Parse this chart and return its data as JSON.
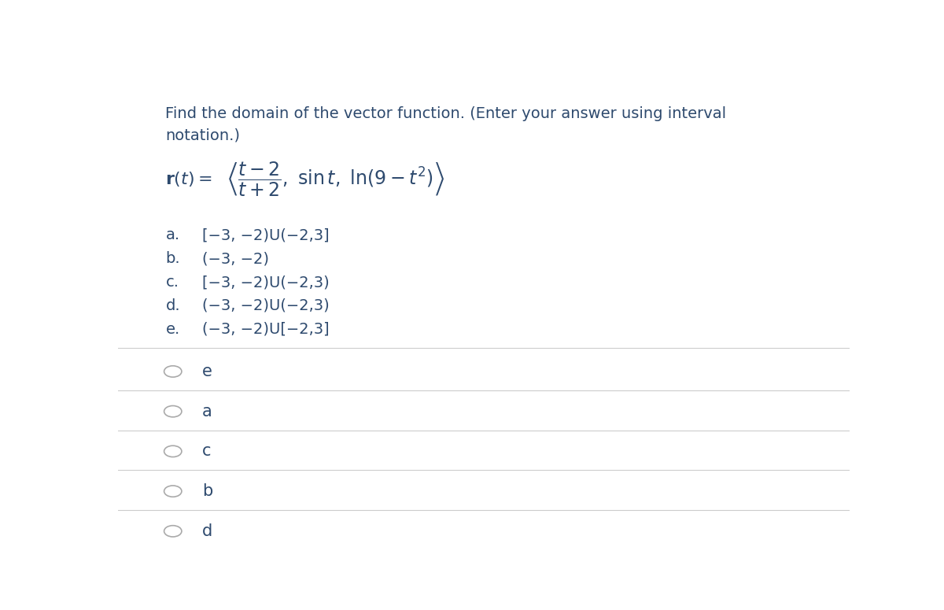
{
  "bg_color": "#ffffff",
  "text_color": "#2e4a6e",
  "question_text": "Find the domain of the vector function. (Enter your answer using interval\nnotation.)",
  "choices": [
    [
      "a.",
      "[−3, −2)U(−2,3]"
    ],
    [
      "b.",
      "(−3, −2)"
    ],
    [
      "c.",
      "[−3, −2)U(−2,3)"
    ],
    [
      "d.",
      "(−3, −2)U(−2,3)"
    ],
    [
      "e.",
      "(−3, −2)U[−2,3]"
    ]
  ],
  "radio_labels": [
    "e",
    "a",
    "c",
    "b",
    "d"
  ],
  "line_color": "#cccccc",
  "radio_color": "#aaaaaa",
  "question_fontsize": 14,
  "choice_fontsize": 14,
  "radio_fontsize": 15
}
